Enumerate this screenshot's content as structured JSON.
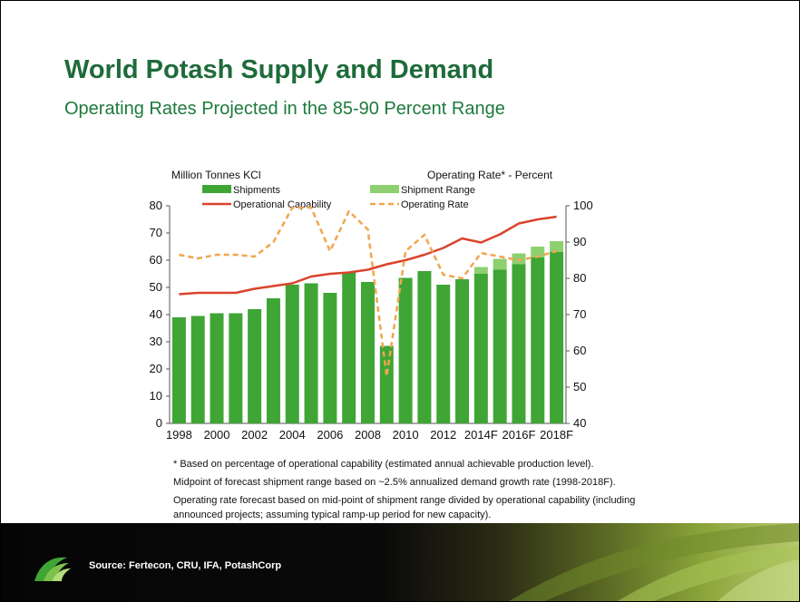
{
  "slide": {
    "title": "World Potash Supply and Demand",
    "subtitle": "Operating Rates Projected in the 85-90 Percent Range",
    "notes": [
      "* Based on percentage of operational capability (estimated annual achievable production level).",
      "Midpoint of forecast shipment range based on ~2.5% annualized demand growth rate (1998-2018F).",
      "Operating rate forecast based on mid-point of shipment range divided by operational capability (including",
      "announced projects; assuming typical ramp-up period for new capacity)."
    ],
    "source": "Source: Fertecon, CRU, IFA, PotashCorp",
    "colors": {
      "title": "#1e6b3a",
      "shipments": "#3fa535",
      "shipment_range": "#8ed06f",
      "operational_capability": "#d9442b",
      "operating_rate": "#f0a650"
    }
  },
  "chart_data": {
    "type": "bar",
    "left_axis_title": "Million Tonnes KCl",
    "right_axis_title": "Operating Rate* - Percent",
    "categories": [
      "1998",
      "1999",
      "2000",
      "2001",
      "2002",
      "2003",
      "2004",
      "2005",
      "2006",
      "2007",
      "2008",
      "2009",
      "2010",
      "2011",
      "2012",
      "2013",
      "2014F",
      "2015F",
      "2016F",
      "2017F",
      "2018F"
    ],
    "x_tick_labels": [
      "1998",
      "2000",
      "2002",
      "2004",
      "2006",
      "2008",
      "2010",
      "2012",
      "2014F",
      "2016F",
      "2018F"
    ],
    "ylim": [
      0,
      80
    ],
    "y_ticks": [
      0,
      10,
      20,
      30,
      40,
      50,
      60,
      70,
      80
    ],
    "y2lim": [
      40,
      100
    ],
    "y2_ticks": [
      40,
      50,
      60,
      70,
      80,
      90,
      100
    ],
    "legend": {
      "shipments": "Shipments",
      "shipment_range": "Shipment Range",
      "operational_capability": "Operational Capability",
      "operating_rate": "Operating Rate"
    },
    "series": [
      {
        "name": "Shipments",
        "axis": "left",
        "type": "bar",
        "values": [
          39,
          39.5,
          40.5,
          40.5,
          42,
          46,
          51,
          51.5,
          48,
          55.5,
          52,
          28.5,
          53.5,
          56,
          51,
          53,
          55,
          56.5,
          58.5,
          61,
          63
        ]
      },
      {
        "name": "Shipment Range",
        "axis": "left",
        "type": "bar-range",
        "values": [
          null,
          null,
          null,
          null,
          null,
          null,
          null,
          null,
          null,
          null,
          null,
          null,
          null,
          null,
          null,
          null,
          [
            55,
            57.5
          ],
          [
            56.5,
            60.5
          ],
          [
            58.5,
            62.5
          ],
          [
            61,
            65
          ],
          [
            63,
            67
          ]
        ]
      },
      {
        "name": "Operational Capability",
        "axis": "left",
        "type": "line",
        "values": [
          47.5,
          48,
          48,
          48,
          49.5,
          50.5,
          51.5,
          54,
          55,
          55.5,
          56.5,
          58.5,
          60,
          62,
          64.5,
          68,
          66.5,
          69.5,
          73.5,
          75,
          76
        ]
      },
      {
        "name": "Operating Rate",
        "axis": "right",
        "type": "line-dashed",
        "values": [
          86.5,
          85.5,
          86.5,
          86.5,
          86,
          90,
          99.5,
          99.5,
          87.5,
          98.5,
          93.5,
          53,
          87.5,
          92,
          81,
          80,
          87,
          86,
          85,
          86,
          87.5
        ]
      }
    ]
  }
}
